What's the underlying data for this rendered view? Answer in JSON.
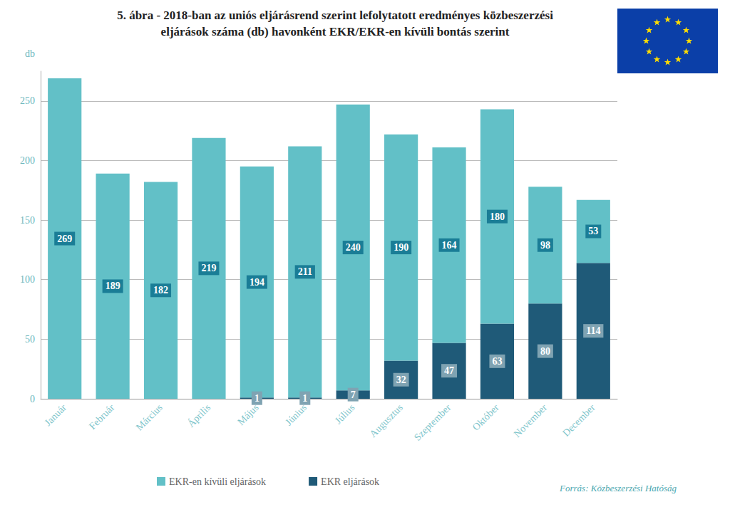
{
  "chart_data": {
    "type": "bar",
    "title": "5. ábra - 2018-ban az uniós eljárásrend szerint lefolytatott eredményes közbeszerzési\neljárások száma (db) havonként EKR/EKR-en kívüli bontás szerint",
    "y_label": "db",
    "annotations": [
      "Forrás: Közbeszerzési Hatóság"
    ],
    "categories": [
      "Január",
      "Február",
      "Március",
      "Április",
      "Május",
      "Június",
      "Július",
      "Augusztus",
      "Szeptember",
      "Október",
      "November",
      "December"
    ],
    "series": [
      {
        "name": "EKR-en kívüli eljárások",
        "color": "#62c0c7",
        "values": [
          269,
          189,
          182,
          219,
          194,
          211,
          240,
          190,
          164,
          180,
          98,
          53
        ]
      },
      {
        "name": "EKR eljárások",
        "color": "#1f5a78",
        "values": [
          null,
          null,
          null,
          null,
          1,
          1,
          7,
          32,
          47,
          63,
          80,
          114
        ]
      }
    ],
    "stacked": true,
    "data_labels": true,
    "ylim": [
      0,
      275
    ],
    "yticks": [
      0,
      50,
      100,
      150,
      200,
      250
    ],
    "grid": true,
    "legend": "bottom-left"
  }
}
